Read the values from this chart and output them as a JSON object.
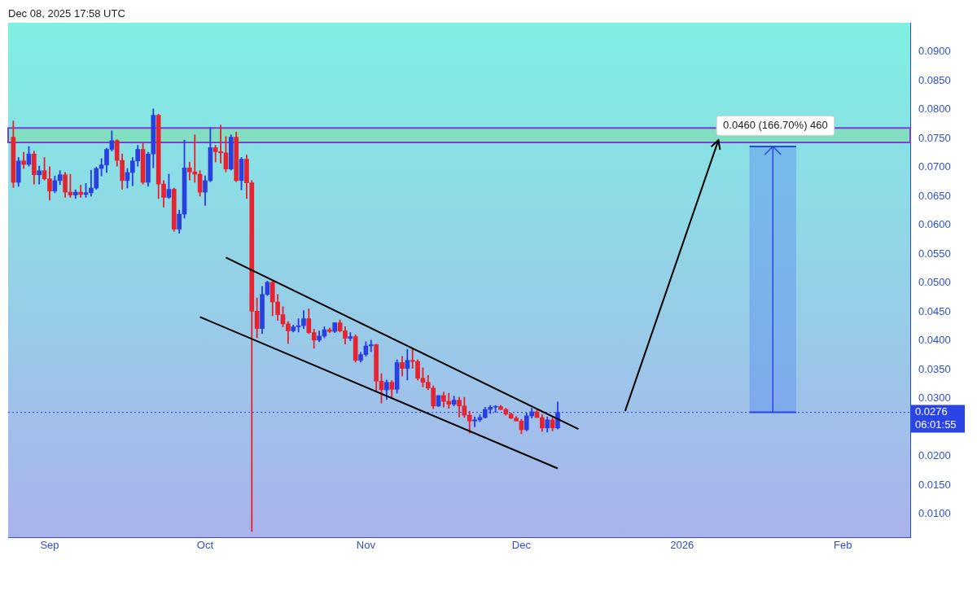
{
  "chart_data": {
    "type": "candlestick",
    "title": "Dec 08, 2025 17:58 UTC",
    "x": [
      "2025-08-25",
      "2025-08-26",
      "2025-08-27",
      "2025-08-28",
      "2025-08-29",
      "2025-08-30",
      "2025-08-31",
      "2025-09-01",
      "2025-09-02",
      "2025-09-03",
      "2025-09-04",
      "2025-09-05",
      "2025-09-06",
      "2025-09-07",
      "2025-09-08",
      "2025-09-09",
      "2025-09-10",
      "2025-09-11",
      "2025-09-12",
      "2025-09-13",
      "2025-09-14",
      "2025-09-15",
      "2025-09-16",
      "2025-09-17",
      "2025-09-18",
      "2025-09-19",
      "2025-09-20",
      "2025-09-21",
      "2025-09-22",
      "2025-09-23",
      "2025-09-24",
      "2025-09-25",
      "2025-09-26",
      "2025-09-27",
      "2025-09-28",
      "2025-09-29",
      "2025-09-30",
      "2025-10-01",
      "2025-10-02",
      "2025-10-03",
      "2025-10-04",
      "2025-10-05",
      "2025-10-06",
      "2025-10-07",
      "2025-10-08",
      "2025-10-09",
      "2025-10-10",
      "2025-10-11",
      "2025-10-12",
      "2025-10-13",
      "2025-10-14",
      "2025-10-15",
      "2025-10-16",
      "2025-10-17",
      "2025-10-18",
      "2025-10-19",
      "2025-10-20",
      "2025-10-21",
      "2025-10-22",
      "2025-10-23",
      "2025-10-24",
      "2025-10-25",
      "2025-10-26",
      "2025-10-27",
      "2025-10-28",
      "2025-10-29",
      "2025-10-30",
      "2025-10-31",
      "2025-11-01",
      "2025-11-02",
      "2025-11-03",
      "2025-11-04",
      "2025-11-05",
      "2025-11-06",
      "2025-11-07",
      "2025-11-08",
      "2025-11-09",
      "2025-11-10",
      "2025-11-11",
      "2025-11-12",
      "2025-11-13",
      "2025-11-14",
      "2025-11-15",
      "2025-11-16",
      "2025-11-17",
      "2025-11-18",
      "2025-11-19",
      "2025-11-20",
      "2025-11-21",
      "2025-11-22",
      "2025-11-23",
      "2025-11-24",
      "2025-11-25",
      "2025-11-26",
      "2025-11-27",
      "2025-11-28",
      "2025-11-29",
      "2025-11-30",
      "2025-12-01",
      "2025-12-02",
      "2025-12-03",
      "2025-12-04",
      "2025-12-05",
      "2025-12-06",
      "2025-12-07",
      "2025-12-08"
    ],
    "ohlc": [
      [
        0.0752,
        0.078,
        0.0665,
        0.0674
      ],
      [
        0.0674,
        0.0717,
        0.0667,
        0.0711
      ],
      [
        0.0711,
        0.0726,
        0.0698,
        0.0705
      ],
      [
        0.0705,
        0.0736,
        0.0702,
        0.0723
      ],
      [
        0.0723,
        0.0728,
        0.0671,
        0.0687
      ],
      [
        0.0687,
        0.0702,
        0.0671,
        0.0694
      ],
      [
        0.0694,
        0.0717,
        0.0678,
        0.068
      ],
      [
        0.068,
        0.0701,
        0.0643,
        0.0659
      ],
      [
        0.0659,
        0.0685,
        0.0656,
        0.0677
      ],
      [
        0.0677,
        0.0694,
        0.067,
        0.0687
      ],
      [
        0.0687,
        0.0691,
        0.0648,
        0.0657
      ],
      [
        0.0657,
        0.0688,
        0.0648,
        0.0652
      ],
      [
        0.0652,
        0.0661,
        0.0646,
        0.0657
      ],
      [
        0.0657,
        0.0669,
        0.0648,
        0.0653
      ],
      [
        0.0653,
        0.0672,
        0.0648,
        0.0656
      ],
      [
        0.0656,
        0.0695,
        0.065,
        0.0664
      ],
      [
        0.0664,
        0.07,
        0.0662,
        0.0698
      ],
      [
        0.0698,
        0.0715,
        0.0685,
        0.0704
      ],
      [
        0.0704,
        0.0733,
        0.0691,
        0.0731
      ],
      [
        0.0731,
        0.0763,
        0.0728,
        0.0746
      ],
      [
        0.0746,
        0.0748,
        0.0702,
        0.0712
      ],
      [
        0.0712,
        0.0723,
        0.0662,
        0.0677
      ],
      [
        0.0677,
        0.0698,
        0.0664,
        0.0691
      ],
      [
        0.0691,
        0.0717,
        0.0668,
        0.0711
      ],
      [
        0.0711,
        0.0738,
        0.0702,
        0.0731
      ],
      [
        0.0731,
        0.0742,
        0.0671,
        0.0674
      ],
      [
        0.0674,
        0.0726,
        0.0667,
        0.0723
      ],
      [
        0.0723,
        0.0801,
        0.0699,
        0.079
      ],
      [
        0.079,
        0.0792,
        0.0646,
        0.0671
      ],
      [
        0.0671,
        0.0677,
        0.0631,
        0.0648
      ],
      [
        0.0648,
        0.0688,
        0.0646,
        0.0662
      ],
      [
        0.0662,
        0.0664,
        0.0589,
        0.0593
      ],
      [
        0.0593,
        0.0626,
        0.0586,
        0.0619
      ],
      [
        0.0619,
        0.0747,
        0.0612,
        0.0699
      ],
      [
        0.0699,
        0.0709,
        0.0678,
        0.0692
      ],
      [
        0.0692,
        0.0756,
        0.0674,
        0.0688
      ],
      [
        0.0688,
        0.0694,
        0.065,
        0.0657
      ],
      [
        0.0657,
        0.0685,
        0.0634,
        0.0677
      ],
      [
        0.0677,
        0.0769,
        0.0675,
        0.0734
      ],
      [
        0.0734,
        0.0738,
        0.0709,
        0.0727
      ],
      [
        0.0727,
        0.0773,
        0.0707,
        0.0725
      ],
      [
        0.0725,
        0.0753,
        0.0692,
        0.0697
      ],
      [
        0.0697,
        0.0756,
        0.0695,
        0.0752
      ],
      [
        0.0752,
        0.0761,
        0.0675,
        0.0677
      ],
      [
        0.0677,
        0.0717,
        0.0661,
        0.0714
      ],
      [
        0.0714,
        0.0721,
        0.0646,
        0.0673
      ],
      [
        0.0673,
        0.0677,
        0.007,
        0.0451
      ],
      [
        0.0451,
        0.0474,
        0.0405,
        0.0421
      ],
      [
        0.0421,
        0.0494,
        0.0412,
        0.048
      ],
      [
        0.048,
        0.0503,
        0.0478,
        0.0501
      ],
      [
        0.0501,
        0.0504,
        0.0443,
        0.0467
      ],
      [
        0.0467,
        0.048,
        0.0435,
        0.0445
      ],
      [
        0.0445,
        0.0459,
        0.0424,
        0.0429
      ],
      [
        0.0429,
        0.0433,
        0.0395,
        0.0417
      ],
      [
        0.0417,
        0.0427,
        0.0415,
        0.0424
      ],
      [
        0.0424,
        0.0438,
        0.0415,
        0.0426
      ],
      [
        0.0426,
        0.0452,
        0.0421,
        0.0438
      ],
      [
        0.0438,
        0.0455,
        0.0412,
        0.0414
      ],
      [
        0.0414,
        0.042,
        0.0387,
        0.0401
      ],
      [
        0.0401,
        0.0417,
        0.0398,
        0.0408
      ],
      [
        0.0408,
        0.0424,
        0.0405,
        0.0419
      ],
      [
        0.0419,
        0.0422,
        0.0414,
        0.0416
      ],
      [
        0.0416,
        0.0431,
        0.0414,
        0.0431
      ],
      [
        0.0431,
        0.0436,
        0.0415,
        0.0417
      ],
      [
        0.0417,
        0.0424,
        0.0394,
        0.0404
      ],
      [
        0.0404,
        0.0414,
        0.04,
        0.0407
      ],
      [
        0.0407,
        0.041,
        0.0363,
        0.0366
      ],
      [
        0.0366,
        0.038,
        0.0363,
        0.0376
      ],
      [
        0.0376,
        0.0398,
        0.0373,
        0.0391
      ],
      [
        0.0391,
        0.0401,
        0.0381,
        0.0393
      ],
      [
        0.0393,
        0.0394,
        0.0313,
        0.033
      ],
      [
        0.033,
        0.0343,
        0.0292,
        0.0315
      ],
      [
        0.0315,
        0.0332,
        0.0298,
        0.0328
      ],
      [
        0.0328,
        0.0331,
        0.0302,
        0.0316
      ],
      [
        0.0316,
        0.0367,
        0.0309,
        0.0362
      ],
      [
        0.0362,
        0.0373,
        0.0339,
        0.0352
      ],
      [
        0.0352,
        0.0385,
        0.0332,
        0.0366
      ],
      [
        0.0366,
        0.0385,
        0.0352,
        0.0364
      ],
      [
        0.0364,
        0.0367,
        0.0332,
        0.0335
      ],
      [
        0.0335,
        0.0353,
        0.032,
        0.0328
      ],
      [
        0.0328,
        0.034,
        0.0315,
        0.0318
      ],
      [
        0.0318,
        0.0322,
        0.0282,
        0.0287
      ],
      [
        0.0287,
        0.0305,
        0.0286,
        0.0305
      ],
      [
        0.0305,
        0.0311,
        0.0285,
        0.0295
      ],
      [
        0.0295,
        0.0309,
        0.0283,
        0.029
      ],
      [
        0.029,
        0.0304,
        0.0287,
        0.0297
      ],
      [
        0.0297,
        0.0302,
        0.0268,
        0.0287
      ],
      [
        0.0287,
        0.0302,
        0.0267,
        0.0271
      ],
      [
        0.0271,
        0.0278,
        0.024,
        0.0261
      ],
      [
        0.0261,
        0.0268,
        0.0251,
        0.0263
      ],
      [
        0.0263,
        0.0272,
        0.026,
        0.0267
      ],
      [
        0.0267,
        0.0285,
        0.0266,
        0.0281
      ],
      [
        0.0281,
        0.0288,
        0.0274,
        0.0285
      ],
      [
        0.0285,
        0.0288,
        0.0276,
        0.0286
      ],
      [
        0.0286,
        0.0288,
        0.0281,
        0.0281
      ],
      [
        0.0281,
        0.0283,
        0.0271,
        0.0273
      ],
      [
        0.0273,
        0.0275,
        0.0265,
        0.0266
      ],
      [
        0.0266,
        0.0269,
        0.0261,
        0.0261
      ],
      [
        0.0261,
        0.0264,
        0.0239,
        0.0246
      ],
      [
        0.0246,
        0.0275,
        0.0244,
        0.027
      ],
      [
        0.027,
        0.0283,
        0.0266,
        0.0277
      ],
      [
        0.0277,
        0.0282,
        0.0267,
        0.0267
      ],
      [
        0.0267,
        0.0272,
        0.0243,
        0.0249
      ],
      [
        0.0249,
        0.0268,
        0.0242,
        0.0263
      ],
      [
        0.0263,
        0.0268,
        0.0244,
        0.0249
      ],
      [
        0.0249,
        0.0294,
        0.0247,
        0.0276
      ]
    ],
    "series": [
      {
        "type": "line",
        "x": [
          "2025-10-05",
          "2025-12-12"
        ],
        "values": [
          0.0544,
          0.0247
        ],
        "color": "#000000"
      },
      {
        "type": "line",
        "x": [
          "2025-09-30",
          "2025-12-08"
        ],
        "values": [
          0.0441,
          0.0179
        ],
        "color": "#000000"
      }
    ],
    "xlim": [
      "2025-08-24",
      "2026-02-14"
    ],
    "xticks": [
      {
        "value": "2025-09-01",
        "label": "Sep"
      },
      {
        "value": "2025-10-01",
        "label": "Oct"
      },
      {
        "value": "2025-11-01",
        "label": "Nov"
      },
      {
        "value": "2025-12-01",
        "label": "Dec"
      },
      {
        "value": "2026-01-01",
        "label": "2026"
      },
      {
        "value": "2026-02-01",
        "label": "Feb"
      }
    ],
    "ylim": [
      0.006,
      0.095
    ],
    "yticks": [
      {
        "value": 0.01,
        "label": "0.0100"
      },
      {
        "value": 0.015,
        "label": "0.0150"
      },
      {
        "value": 0.02,
        "label": "0.0200"
      },
      {
        "value": 0.03,
        "label": "0.0300"
      },
      {
        "value": 0.035,
        "label": "0.0350"
      },
      {
        "value": 0.04,
        "label": "0.0400"
      },
      {
        "value": 0.045,
        "label": "0.0450"
      },
      {
        "value": 0.05,
        "label": "0.0500"
      },
      {
        "value": 0.055,
        "label": "0.0550"
      },
      {
        "value": 0.06,
        "label": "0.0600"
      },
      {
        "value": 0.065,
        "label": "0.0650"
      },
      {
        "value": 0.07,
        "label": "0.0700"
      },
      {
        "value": 0.075,
        "label": "0.0750"
      },
      {
        "value": 0.08,
        "label": "0.0800"
      },
      {
        "value": 0.085,
        "label": "0.0850"
      },
      {
        "value": 0.09,
        "label": "0.0900"
      }
    ],
    "bands": [
      {
        "axis": "y",
        "from": 0.0743,
        "to": 0.0768,
        "color": "#7fdcb4"
      }
    ],
    "ref_lines": [
      {
        "axis": "y",
        "value": 0.0276,
        "label": "0.0276",
        "color": "#2a44e6",
        "line_style": "dotted"
      }
    ],
    "annotations": [
      {
        "text": "0.0460 (166.70%) 460",
        "x": "2026-01-19",
        "y": 0.0772
      },
      "06:01:55"
    ]
  }
}
